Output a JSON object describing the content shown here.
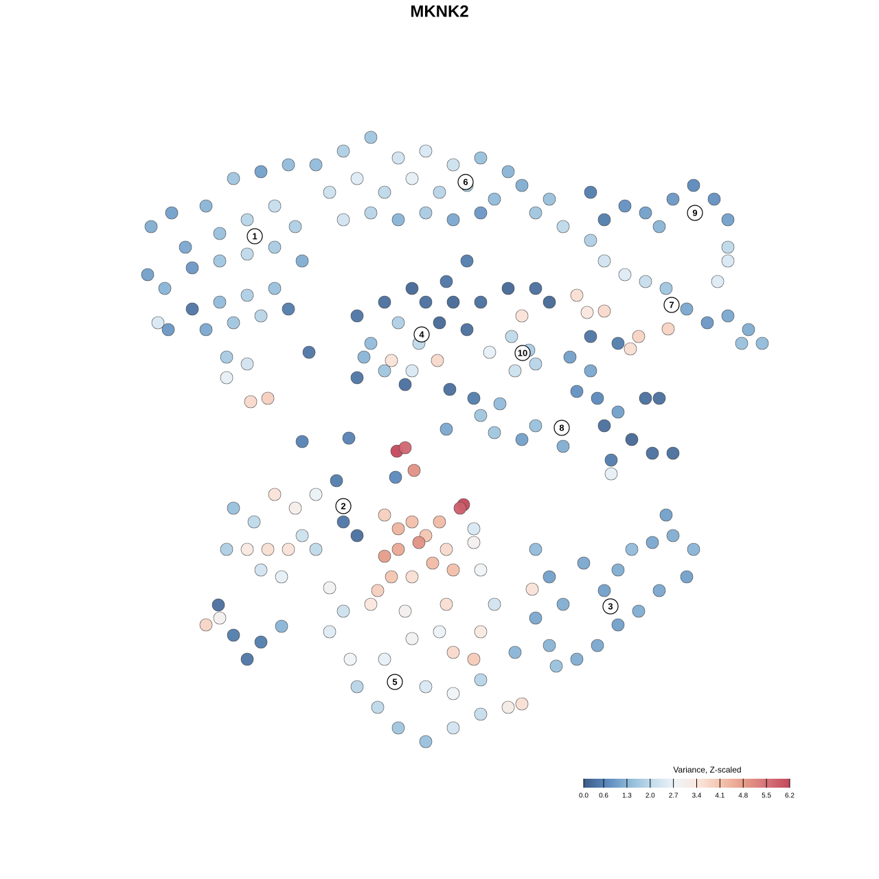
{
  "chart_data": {
    "type": "scatter",
    "title": "MKNK2",
    "xlim": [
      0,
      1280
    ],
    "ylim": [
      1280,
      0
    ],
    "x": [
      220,
      250,
      300,
      340,
      380,
      420,
      270,
      320,
      360,
      400,
      430,
      215,
      240,
      280,
      320,
      360,
      400,
      440,
      280,
      320,
      360,
      400,
      300,
      340,
      380,
      420,
      330,
      360,
      330,
      365,
      390,
      230,
      245,
      460,
      500,
      540,
      580,
      620,
      660,
      700,
      740,
      480,
      520,
      560,
      600,
      640,
      680,
      720,
      760,
      800,
      500,
      540,
      580,
      620,
      660,
      700,
      780,
      820,
      860,
      520,
      540,
      560,
      580,
      600,
      610,
      620,
      640,
      560,
      590,
      520,
      530,
      600,
      637,
      570,
      660,
      700,
      740,
      780,
      800,
      680,
      760,
      650,
      680,
      745,
      770,
      750,
      780,
      713,
      880,
      910,
      940,
      980,
      1010,
      1040,
      1060,
      960,
      1060,
      1060,
      860,
      1045,
      880,
      910,
      940,
      970,
      1000,
      1030,
      1060,
      1090,
      1110,
      1080,
      880,
      930,
      973,
      840,
      855,
      830,
      860,
      840,
      870,
      900,
      940,
      960,
      880,
      920,
      950,
      980,
      890,
      890,
      860,
      900,
      918,
      780,
      820,
      760,
      720,
      655,
      690,
      700,
      728,
      440,
      508,
      650,
      603,
      578,
      590,
      576,
      450,
      340,
      370,
      400,
      430,
      460,
      490,
      500,
      520,
      330,
      360,
      390,
      420,
      410,
      440,
      460,
      480,
      380,
      300,
      320,
      340,
      360,
      380,
      410,
      318,
      560,
      580,
      600,
      620,
      640,
      560,
      580,
      610,
      630,
      650,
      570,
      550,
      600,
      660,
      675,
      670,
      690,
      700,
      690,
      780,
      800,
      820,
      780,
      800,
      850,
      880,
      900,
      920,
      950,
      980,
      1010,
      1000,
      960,
      930,
      900,
      870,
      840,
      810,
      775,
      970,
      480,
      510,
      520,
      550,
      580,
      620,
      660,
      700,
      740,
      760,
      560,
      600,
      640,
      660,
      690,
      700,
      620,
      660,
      700,
      590,
      650,
      720,
      750,
      540,
      500
    ],
    "y": [
      330,
      310,
      300,
      260,
      250,
      240,
      360,
      340,
      320,
      300,
      330,
      400,
      420,
      390,
      380,
      370,
      360,
      380,
      450,
      440,
      430,
      420,
      480,
      470,
      460,
      450,
      520,
      530,
      550,
      585,
      580,
      470,
      480,
      240,
      220,
      200,
      230,
      220,
      240,
      230,
      250,
      280,
      260,
      280,
      260,
      280,
      270,
      290,
      270,
      290,
      320,
      310,
      320,
      310,
      320,
      310,
      310,
      330,
      350,
      460,
      500,
      440,
      470,
      420,
      500,
      440,
      470,
      540,
      560,
      550,
      520,
      540,
      525,
      525,
      440,
      440,
      420,
      420,
      440,
      480,
      460,
      410,
      380,
      490,
      510,
      540,
      530,
      513,
      320,
      300,
      310,
      290,
      270,
      290,
      320,
      330,
      360,
      380,
      280,
      410,
      380,
      400,
      410,
      420,
      450,
      470,
      460,
      480,
      500,
      500,
      453,
      490,
      479,
      430,
      455,
      520,
      540,
      570,
      580,
      600,
      580,
      580,
      620,
      640,
      660,
      660,
      670,
      690,
      490,
      500,
      508,
      620,
      650,
      640,
      630,
      567,
      580,
      605,
      588,
      643,
      638,
      625,
      685,
      657,
      652,
      695,
      513,
      740,
      760,
      720,
      740,
      720,
      700,
      760,
      780,
      800,
      800,
      800,
      800,
      840,
      780,
      800,
      856,
      830,
      910,
      900,
      925,
      960,
      935,
      912,
      881,
      750,
      770,
      760,
      780,
      760,
      810,
      800,
      790,
      820,
      800,
      840,
      860,
      840,
      830,
      735,
      740,
      790,
      830,
      770,
      800,
      840,
      880,
      900,
      940,
      820,
      860,
      830,
      800,
      790,
      780,
      800,
      840,
      860,
      890,
      910,
      940,
      960,
      970,
      858,
      750,
      920,
      960,
      1000,
      1030,
      1060,
      1080,
      1060,
      1040,
      1030,
      1025,
      960,
      930,
      920,
      950,
      960,
      920,
      1000,
      1010,
      990,
      890,
      880,
      880,
      950,
      880,
      890
    ],
    "z": [
      1.2,
      1.0,
      1.3,
      1.6,
      1.0,
      1.4,
      1.1,
      1.5,
      1.9,
      2.1,
      1.8,
      1.0,
      1.3,
      0.9,
      1.6,
      2.0,
      1.7,
      1.2,
      0.4,
      1.4,
      1.8,
      1.5,
      1.1,
      1.6,
      1.9,
      0.5,
      1.7,
      2.3,
      2.6,
      3.7,
      3.9,
      2.4,
      0.9,
      1.4,
      1.8,
      1.6,
      2.3,
      2.4,
      2.2,
      1.5,
      1.3,
      2.2,
      2.5,
      2.0,
      2.6,
      1.9,
      1.7,
      1.4,
      1.2,
      1.5,
      2.3,
      1.9,
      1.3,
      1.7,
      1.1,
      0.9,
      1.6,
      2.0,
      1.8,
      0.4,
      1.4,
      0.3,
      1.8,
      0.2,
      2.0,
      0.3,
      0.2,
      1.6,
      0.3,
      0.4,
      1.3,
      2.4,
      3.7,
      3.5,
      0.2,
      0.3,
      0.2,
      0.3,
      0.2,
      0.3,
      3.5,
      0.4,
      0.5,
      2.0,
      1.7,
      2.2,
      1.9,
      2.6,
      0.5,
      0.8,
      1.0,
      0.9,
      0.7,
      0.8,
      1.0,
      1.3,
      2.0,
      2.4,
      0.5,
      2.5,
      2.3,
      2.5,
      2.1,
      1.6,
      1.1,
      0.9,
      1.1,
      1.2,
      1.4,
      1.5,
      3.7,
      3.8,
      3.8,
      3.6,
      3.4,
      1.0,
      1.1,
      0.8,
      0.7,
      1.0,
      0.3,
      0.3,
      0.3,
      0.2,
      0.3,
      0.3,
      0.5,
      2.6,
      0.4,
      0.5,
      3.6,
      1.5,
      1.2,
      1.0,
      1.6,
      0.3,
      0.5,
      1.6,
      1.4,
      0.6,
      0.6,
      1.1,
      5.0,
      6.2,
      5.7,
      0.7,
      0.4,
      1.5,
      2.0,
      3.5,
      3.1,
      2.7,
      0.5,
      0.4,
      0.3,
      1.8,
      3.3,
      3.6,
      3.5,
      2.6,
      2.2,
      2.0,
      2.9,
      2.3,
      3.8,
      3.0,
      0.5,
      0.4,
      0.5,
      1.3,
      0.3,
      3.9,
      4.4,
      4.2,
      4.1,
      4.3,
      4.8,
      4.6,
      5.0,
      4.3,
      3.7,
      4.1,
      3.9,
      3.6,
      4.2,
      6.2,
      5.8,
      3.0,
      2.8,
      2.4,
      1.4,
      1.0,
      1.2,
      1.1,
      1.3,
      1.1,
      1.0,
      1.2,
      1.4,
      1.1,
      1.2,
      1.3,
      1.0,
      1.1,
      1.2,
      1.0,
      1.1,
      1.2,
      1.5,
      3.5,
      1.0,
      2.5,
      2.8,
      1.9,
      2.0,
      1.6,
      1.5,
      2.3,
      2.1,
      3.2,
      3.6,
      2.6,
      2.9,
      2.7,
      3.7,
      4.0,
      3.3,
      2.4,
      2.8,
      1.9,
      3.0,
      3.6,
      2.3,
      1.3,
      3.4,
      2.2
    ],
    "clusters": [
      {
        "label": "1",
        "x": 371,
        "y": 344
      },
      {
        "label": "2",
        "x": 500,
        "y": 737
      },
      {
        "label": "3",
        "x": 889,
        "y": 883
      },
      {
        "label": "4",
        "x": 614,
        "y": 487
      },
      {
        "label": "5",
        "x": 575,
        "y": 993
      },
      {
        "label": "6",
        "x": 678,
        "y": 265
      },
      {
        "label": "7",
        "x": 978,
        "y": 444
      },
      {
        "label": "8",
        "x": 818,
        "y": 623
      },
      {
        "label": "9",
        "x": 1012,
        "y": 310
      },
      {
        "label": "10",
        "x": 761,
        "y": 514
      }
    ],
    "colorbar": {
      "title": "Variance, Z-scaled",
      "zlim": [
        0,
        6.2
      ],
      "ticks": [
        {
          "value": 0,
          "label": "0.0"
        },
        0.6,
        1.3,
        {
          "value": 2,
          "label": "2.0"
        },
        2.7,
        3.4,
        4.1,
        4.8,
        5.5,
        6.2
      ],
      "colors": [
        "#3d5b86",
        "#5a88bb",
        "#8fbad9",
        "#c4dcec",
        "#eef4f8",
        "#fbe6dc",
        "#f3c3ae",
        "#e69c88",
        "#d6727a",
        "#c4485b"
      ]
    }
  }
}
